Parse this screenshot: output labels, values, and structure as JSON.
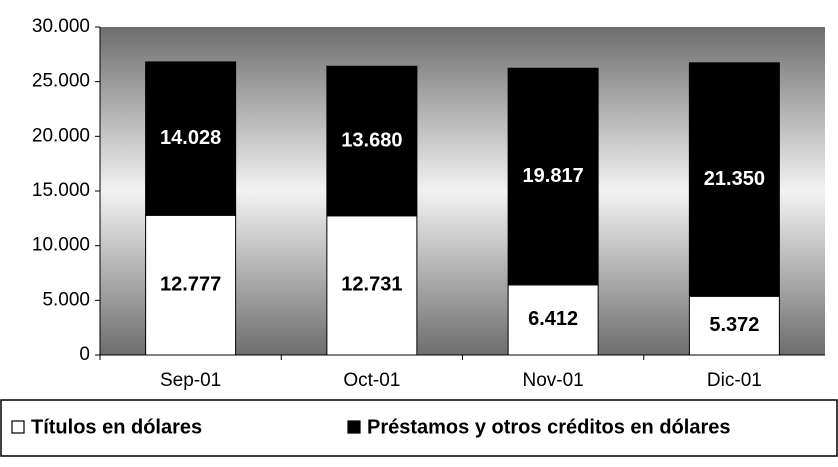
{
  "chart_data": {
    "type": "stacked_bar",
    "categories": [
      "Sep-01",
      "Oct-01",
      "Nov-01",
      "Dic-01"
    ],
    "series": [
      {
        "name": "Títulos en dólares",
        "color": "#ffffff",
        "values": [
          12777,
          12731,
          6412,
          5372
        ],
        "value_labels": [
          "12.777",
          "12.731",
          "6.412",
          "5.372"
        ]
      },
      {
        "name": "Préstamos y otros créditos en dólares",
        "color": "#000000",
        "values": [
          14028,
          13680,
          19817,
          21350
        ],
        "value_labels": [
          "14.028",
          "13.680",
          "19.817",
          "21.350"
        ]
      }
    ],
    "ylim": [
      0,
      30000
    ],
    "yticks": [
      0,
      {
        "value": 5000,
        "label": "5.000"
      },
      {
        "value": 10000,
        "label": "10.000"
      },
      {
        "value": 15000,
        "label": "15.000"
      },
      {
        "value": 20000,
        "label": "20.000"
      },
      {
        "value": 25000,
        "label": "25.000"
      },
      {
        "value": 30000,
        "label": "30.000"
      }
    ],
    "legend": "bottom"
  }
}
